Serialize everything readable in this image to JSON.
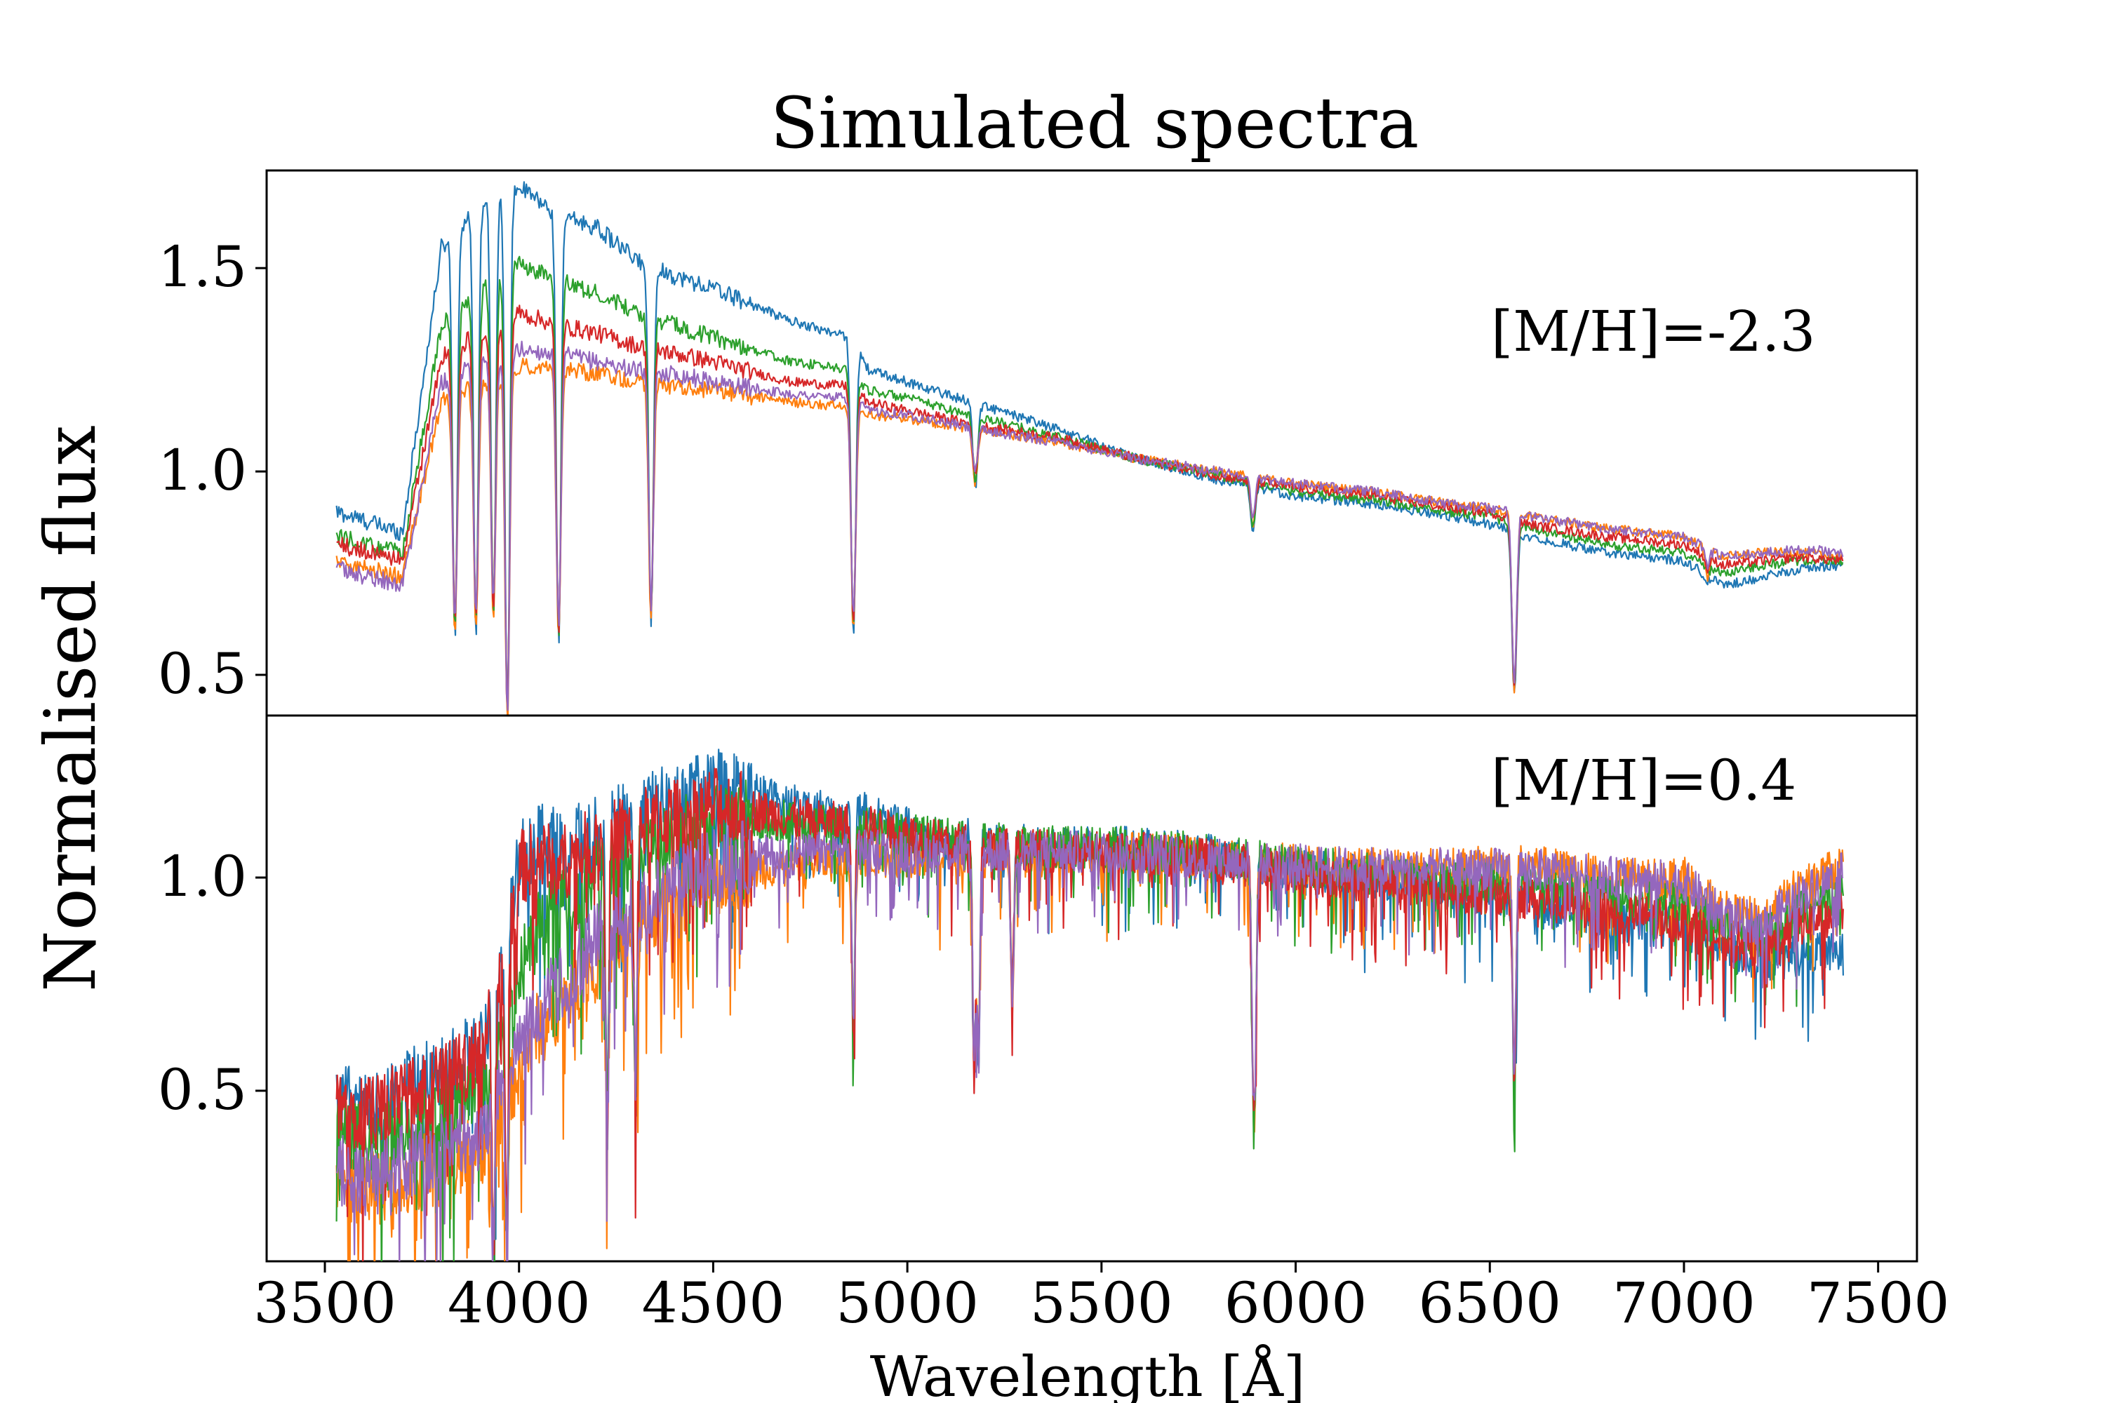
{
  "chart_data": {
    "type": "line",
    "title": "Simulated spectra",
    "xlabel": "Wavelength [Å]",
    "ylabel": "Normalised flux",
    "xlim": [
      3350,
      7600
    ],
    "x_ticks": [
      3500,
      4000,
      4500,
      5000,
      5500,
      6000,
      6500,
      7000,
      7500
    ],
    "grid": false,
    "legend": "none",
    "series_colors": [
      "#1f77b4",
      "#ff7f0e",
      "#2ca02c",
      "#d62728",
      "#9467bd"
    ],
    "x_range": [
      3530,
      7410
    ],
    "panels": [
      {
        "annotation": "[M/H]=-2.3",
        "ylim": [
          0.4,
          1.74
        ],
        "y_ticks": [
          "0.5",
          "1.0",
          "1.5"
        ],
        "y_tick_values": [
          0.5,
          1.0,
          1.5
        ],
        "series": [
          {
            "color": "#1f77b4",
            "x": [
              3530,
              3700,
              3800,
              3900,
              4000,
              4100,
              4200,
              4300,
              4400,
              4500,
              4700,
              4850,
              4900,
              5000,
              5200,
              5400,
              5600,
              5800,
              6000,
              6200,
              6400,
              6500,
              6600,
              6800,
              7000,
              7100,
              7200,
              7300,
              7410
            ],
            "y": [
              0.9,
              0.85,
              1.55,
              1.66,
              1.7,
              1.63,
              1.6,
              1.52,
              1.48,
              1.45,
              1.37,
              1.33,
              1.25,
              1.22,
              1.16,
              1.1,
              1.03,
              0.98,
              0.94,
              0.92,
              0.89,
              0.87,
              0.84,
              0.8,
              0.78,
              0.72,
              0.74,
              0.76,
              0.77
            ]
          },
          {
            "color": "#ff7f0e",
            "x": [
              3530,
              3700,
              3800,
              3900,
              4000,
              4100,
              4200,
              4300,
              4400,
              4500,
              4700,
              4850,
              4900,
              5000,
              5200,
              5400,
              5600,
              5800,
              6000,
              6200,
              6400,
              6500,
              6600,
              6800,
              7000,
              7100,
              7200,
              7300,
              7410
            ],
            "y": [
              0.78,
              0.74,
              1.17,
              1.22,
              1.26,
              1.25,
              1.24,
              1.22,
              1.21,
              1.2,
              1.17,
              1.16,
              1.14,
              1.13,
              1.1,
              1.07,
              1.03,
              1.0,
              0.97,
              0.95,
              0.92,
              0.91,
              0.89,
              0.86,
              0.84,
              0.79,
              0.8,
              0.8,
              0.79
            ]
          },
          {
            "color": "#2ca02c",
            "x": [
              3530,
              3700,
              3800,
              3900,
              4000,
              4100,
              4200,
              4300,
              4400,
              4500,
              4700,
              4850,
              4900,
              5000,
              5200,
              5400,
              5600,
              5800,
              6000,
              6200,
              6400,
              6500,
              6600,
              6800,
              7000,
              7100,
              7200,
              7300,
              7410
            ],
            "y": [
              0.84,
              0.8,
              1.36,
              1.44,
              1.51,
              1.47,
              1.44,
              1.39,
              1.36,
              1.33,
              1.27,
              1.25,
              1.2,
              1.18,
              1.13,
              1.08,
              1.03,
              0.99,
              0.95,
              0.93,
              0.9,
              0.89,
              0.86,
              0.82,
              0.8,
              0.75,
              0.77,
              0.78,
              0.78
            ]
          },
          {
            "color": "#d62728",
            "x": [
              3530,
              3700,
              3800,
              3900,
              4000,
              4100,
              4200,
              4300,
              4400,
              4500,
              4700,
              4850,
              4900,
              5000,
              5200,
              5400,
              5600,
              5800,
              6000,
              6200,
              6400,
              6500,
              6600,
              6800,
              7000,
              7100,
              7200,
              7300,
              7410
            ],
            "y": [
              0.82,
              0.78,
              1.28,
              1.34,
              1.39,
              1.36,
              1.34,
              1.31,
              1.29,
              1.27,
              1.22,
              1.21,
              1.17,
              1.15,
              1.11,
              1.08,
              1.03,
              0.99,
              0.96,
              0.94,
              0.91,
              0.9,
              0.87,
              0.84,
              0.82,
              0.77,
              0.78,
              0.79,
              0.78
            ]
          },
          {
            "color": "#9467bd",
            "x": [
              3530,
              3700,
              3800,
              3900,
              4000,
              4100,
              4200,
              4300,
              4400,
              4500,
              4700,
              4850,
              4900,
              5000,
              5200,
              5400,
              5600,
              5800,
              6000,
              6200,
              6400,
              6500,
              6600,
              6800,
              7000,
              7100,
              7200,
              7300,
              7410
            ],
            "y": [
              0.76,
              0.72,
              1.22,
              1.27,
              1.3,
              1.29,
              1.27,
              1.25,
              1.24,
              1.22,
              1.19,
              1.18,
              1.15,
              1.14,
              1.1,
              1.07,
              1.03,
              1.0,
              0.97,
              0.95,
              0.92,
              0.91,
              0.89,
              0.86,
              0.84,
              0.79,
              0.8,
              0.81,
              0.8
            ]
          }
        ],
        "absorption_lines": [
          {
            "x": 3835,
            "y": 0.61
          },
          {
            "x": 3889,
            "y": 0.62
          },
          {
            "x": 3934,
            "y": 0.66
          },
          {
            "x": 3970,
            "y": 0.4
          },
          {
            "x": 4102,
            "y": 0.6
          },
          {
            "x": 4340,
            "y": 0.65
          },
          {
            "x": 4861,
            "y": 0.62
          },
          {
            "x": 5175,
            "y": 0.98
          },
          {
            "x": 5890,
            "y": 0.87
          },
          {
            "x": 6563,
            "y": 0.47
          },
          {
            "x": 7060,
            "y": 0.75
          }
        ]
      },
      {
        "annotation": "[M/H]=0.4",
        "ylim": [
          0.1,
          1.38
        ],
        "y_ticks": [
          "0.5",
          "1.0"
        ],
        "y_tick_values": [
          0.5,
          1.0
        ],
        "series": [
          {
            "color": "#1f77b4",
            "x": [
              3530,
              3600,
              3700,
              3800,
              3900,
              3950,
              4000,
              4050,
              4100,
              4200,
              4300,
              4400,
              4500,
              4600,
              4700,
              4800,
              4900,
              5000,
              5200,
              5400,
              5600,
              5800,
              6000,
              6200,
              6400,
              6600,
              6800,
              7000,
              7100,
              7200,
              7300,
              7410
            ],
            "y": [
              0.5,
              0.45,
              0.5,
              0.55,
              0.6,
              0.75,
              1.05,
              1.1,
              1.07,
              1.1,
              1.15,
              1.18,
              1.22,
              1.2,
              1.17,
              1.15,
              1.15,
              1.12,
              1.08,
              1.07,
              1.07,
              1.05,
              1.02,
              1.0,
              0.97,
              0.95,
              0.9,
              0.88,
              0.83,
              0.8,
              0.82,
              0.82
            ]
          },
          {
            "color": "#ff7f0e",
            "x": [
              3530,
              3600,
              3700,
              3800,
              3900,
              3950,
              4000,
              4050,
              4100,
              4200,
              4300,
              4400,
              4500,
              4600,
              4700,
              4800,
              4900,
              5000,
              5200,
              5400,
              5600,
              5800,
              6000,
              6200,
              6400,
              6600,
              6800,
              7000,
              7100,
              7200,
              7300,
              7410
            ],
            "y": [
              0.3,
              0.26,
              0.3,
              0.32,
              0.36,
              0.45,
              0.55,
              0.65,
              0.7,
              0.8,
              0.88,
              0.95,
              1.0,
              1.02,
              1.03,
              1.04,
              1.05,
              1.05,
              1.05,
              1.05,
              1.06,
              1.04,
              1.03,
              1.02,
              1.02,
              1.03,
              1.0,
              1.0,
              0.92,
              0.9,
              0.98,
              1.03
            ]
          },
          {
            "color": "#2ca02c",
            "x": [
              3530,
              3600,
              3700,
              3800,
              3900,
              3950,
              4000,
              4050,
              4100,
              4200,
              4300,
              4400,
              4500,
              4600,
              4700,
              4800,
              4900,
              5000,
              5200,
              5400,
              5600,
              5800,
              6000,
              6200,
              6400,
              6600,
              6800,
              7000,
              7100,
              7200,
              7300,
              7410
            ],
            "y": [
              0.42,
              0.37,
              0.42,
              0.46,
              0.52,
              0.62,
              0.78,
              0.88,
              0.92,
              1.0,
              1.06,
              1.1,
              1.13,
              1.14,
              1.13,
              1.12,
              1.12,
              1.1,
              1.08,
              1.07,
              1.07,
              1.05,
              1.03,
              1.01,
              0.99,
              0.98,
              0.95,
              0.94,
              0.88,
              0.86,
              0.92,
              0.96
            ]
          },
          {
            "color": "#d62728",
            "x": [
              3530,
              3600,
              3700,
              3800,
              3900,
              3950,
              4000,
              4050,
              4100,
              4200,
              4300,
              4400,
              4500,
              4600,
              4700,
              4800,
              4900,
              5000,
              5200,
              5400,
              5600,
              5800,
              6000,
              6200,
              6400,
              6600,
              6800,
              7000,
              7100,
              7200,
              7300,
              7410
            ],
            "y": [
              0.48,
              0.44,
              0.48,
              0.52,
              0.58,
              0.75,
              1.02,
              1.05,
              1.03,
              1.08,
              1.12,
              1.14,
              1.17,
              1.16,
              1.14,
              1.13,
              1.12,
              1.1,
              1.07,
              1.06,
              1.06,
              1.04,
              1.01,
              0.99,
              0.97,
              0.95,
              0.92,
              0.9,
              0.85,
              0.84,
              0.89,
              0.92
            ]
          },
          {
            "color": "#9467bd",
            "x": [
              3530,
              3600,
              3700,
              3800,
              3900,
              3950,
              4000,
              4050,
              4100,
              4200,
              4300,
              4400,
              4500,
              4600,
              4700,
              4800,
              4900,
              5000,
              5200,
              5400,
              5600,
              5800,
              6000,
              6200,
              6400,
              6600,
              6800,
              7000,
              7100,
              7200,
              7300,
              7410
            ],
            "y": [
              0.32,
              0.28,
              0.33,
              0.36,
              0.4,
              0.5,
              0.6,
              0.7,
              0.75,
              0.85,
              0.92,
              0.98,
              1.03,
              1.05,
              1.05,
              1.06,
              1.07,
              1.06,
              1.06,
              1.06,
              1.06,
              1.04,
              1.03,
              1.02,
              1.02,
              1.02,
              1.0,
              0.99,
              0.91,
              0.89,
              0.96,
              1.01
            ]
          }
        ],
        "absorption_lines": [
          {
            "x": 3934,
            "y": 0.12
          },
          {
            "x": 3968,
            "y": 0.12
          },
          {
            "x": 4227,
            "y": 0.42
          },
          {
            "x": 4300,
            "y": 0.5
          },
          {
            "x": 4861,
            "y": 0.65
          },
          {
            "x": 5172,
            "y": 0.58
          },
          {
            "x": 5183,
            "y": 0.6
          },
          {
            "x": 5270,
            "y": 0.72
          },
          {
            "x": 5890,
            "y": 0.63
          },
          {
            "x": 5896,
            "y": 0.66
          },
          {
            "x": 6563,
            "y": 0.52
          }
        ]
      }
    ]
  }
}
